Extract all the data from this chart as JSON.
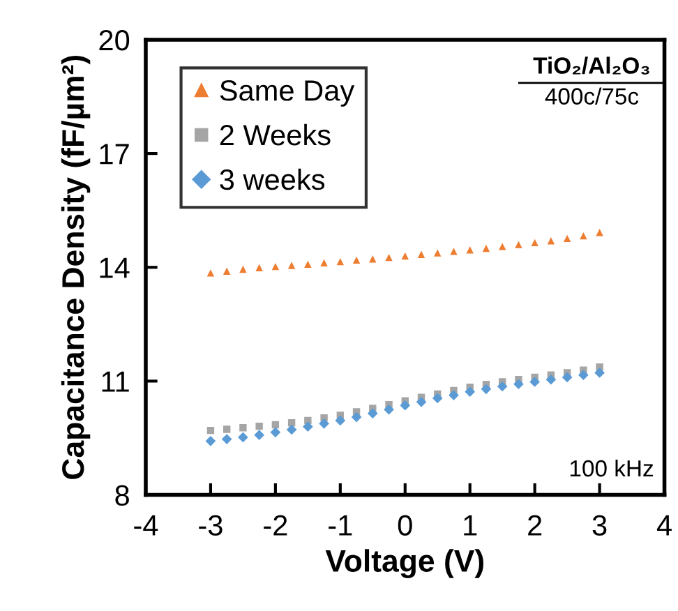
{
  "chart_data": {
    "type": "scatter",
    "xlabel": "Voltage (V)",
    "ylabel": "Capacitance Density (fF/µm²)",
    "x": [
      -3,
      -2.75,
      -2.5,
      -2.25,
      -2,
      -1.75,
      -1.5,
      -1.25,
      -1,
      -0.75,
      -0.5,
      -0.25,
      0,
      0.25,
      0.5,
      0.75,
      1,
      1.25,
      1.5,
      1.75,
      2,
      2.25,
      2.5,
      2.75,
      3
    ],
    "series": [
      {
        "name": "Same Day",
        "color": "#ed7d31",
        "marker": "triangle",
        "values": [
          13.85,
          13.9,
          13.95,
          13.99,
          14.02,
          14.05,
          14.08,
          14.12,
          14.15,
          14.19,
          14.22,
          14.26,
          14.3,
          14.34,
          14.38,
          14.42,
          14.46,
          14.5,
          14.55,
          14.6,
          14.65,
          14.7,
          14.76,
          14.83,
          14.92
        ]
      },
      {
        "name": "2 Weeks",
        "color": "#a5a5a5",
        "marker": "square",
        "values": [
          9.7,
          9.73,
          9.77,
          9.81,
          9.85,
          9.9,
          9.96,
          10.03,
          10.1,
          10.19,
          10.28,
          10.38,
          10.48,
          10.57,
          10.66,
          10.75,
          10.84,
          10.91,
          10.98,
          11.04,
          11.1,
          11.16,
          11.22,
          11.29,
          11.37
        ]
      },
      {
        "name": "3 weeks",
        "color": "#5b9bd5",
        "marker": "diamond",
        "values": [
          9.42,
          9.47,
          9.52,
          9.58,
          9.65,
          9.72,
          9.8,
          9.88,
          9.96,
          10.05,
          10.15,
          10.25,
          10.36,
          10.45,
          10.55,
          10.63,
          10.72,
          10.79,
          10.86,
          10.92,
          10.98,
          11.04,
          11.1,
          11.16,
          11.22
        ]
      }
    ],
    "xlim": [
      -4,
      4
    ],
    "xticks": [
      -4,
      -3,
      -2,
      -1,
      0,
      1,
      2,
      3,
      4
    ],
    "ylim": [
      8,
      20
    ],
    "yticks": [
      8,
      11,
      14,
      17,
      20
    ],
    "grid": false,
    "legend": "top left",
    "annotations": [
      "TiO₂/Al₂O₃",
      "400c/75c",
      "100 kHz"
    ]
  }
}
